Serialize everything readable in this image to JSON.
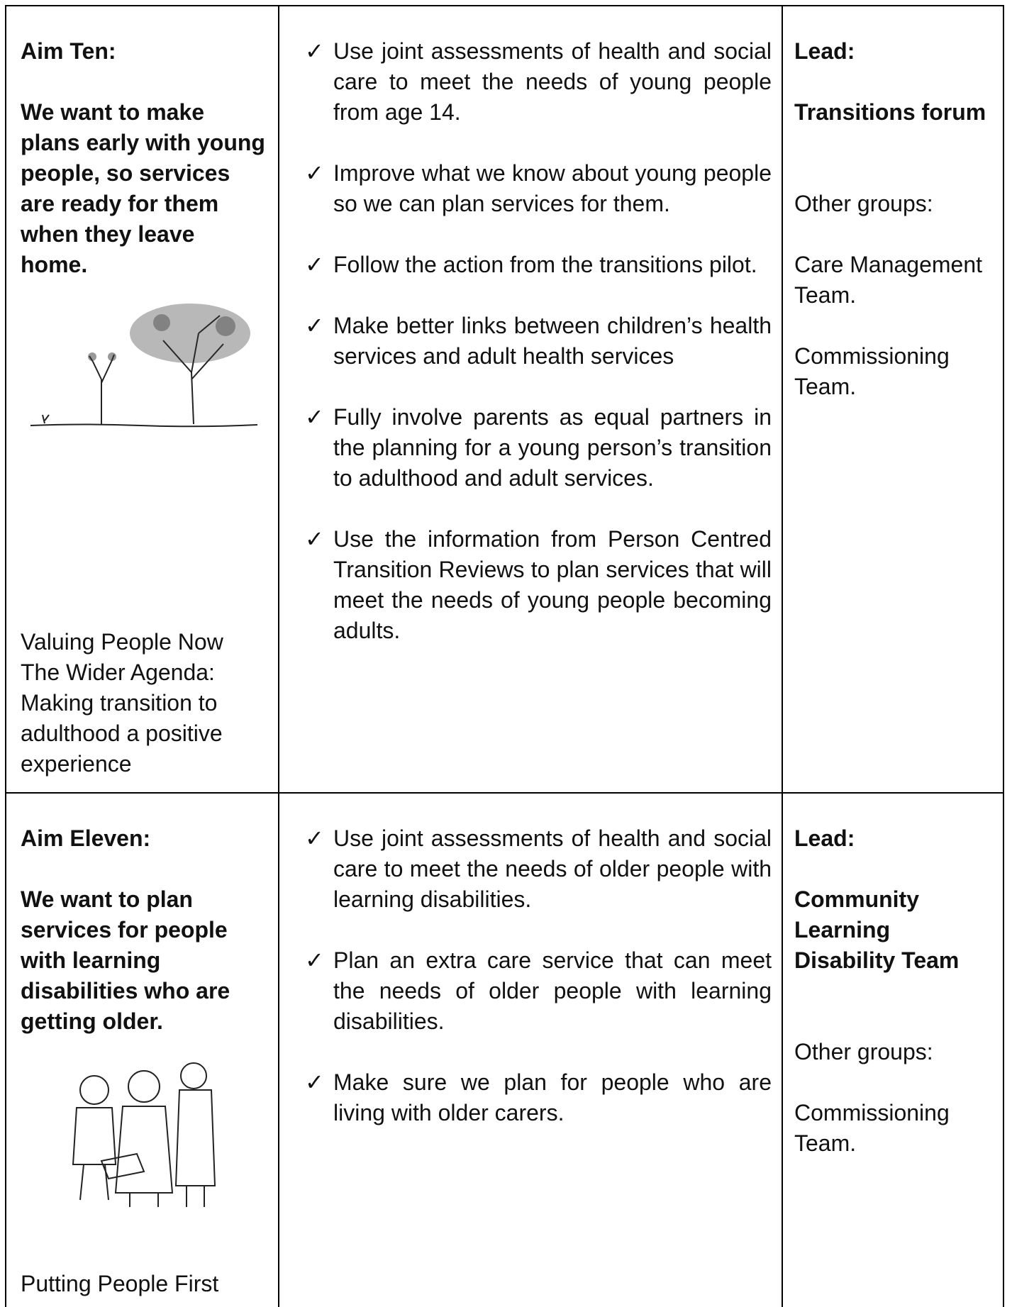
{
  "rows": [
    {
      "aim": "Aim Ten:",
      "statement": "We want to make plans early with young people, so services are ready for them when they leave home.",
      "source": [
        "Valuing People Now",
        "The Wider Agenda:",
        "Making transition to adulthood a positive experience"
      ],
      "actions": [
        "Use joint assessments of health and social care to meet the needs of young people from age 14.",
        "Improve what we know about young people so we can plan services for them.",
        "Follow the action from the transitions pilot.",
        "Make better links between children’s health services and adult health services",
        "Fully involve parents as equal partners in the planning for a young person’s transition to adulthood and adult services.",
        "Use the information from Person Centred Transition Reviews to plan services that will meet the needs of young people becoming adults."
      ],
      "lead_label": "Lead:",
      "lead": "Transitions forum",
      "other_label": "Other groups:",
      "others": [
        "Care Management Team.",
        "Commissioning Team."
      ]
    },
    {
      "aim": "Aim Eleven:",
      "statement": "We want to plan services for people with learning disabilities who are getting older.",
      "source": [
        "Putting People First"
      ],
      "actions": [
        "Use joint assessments of health and social care to meet the needs of older people with learning disabilities.",
        "Plan an extra care service that can meet the needs of older people with learning disabilities.",
        "Make sure we plan for people who are living with older carers."
      ],
      "lead_label": "Lead:",
      "lead": "Community Learning Disability Team",
      "other_label": "Other groups:",
      "others": [
        "Commissioning Team."
      ]
    }
  ]
}
